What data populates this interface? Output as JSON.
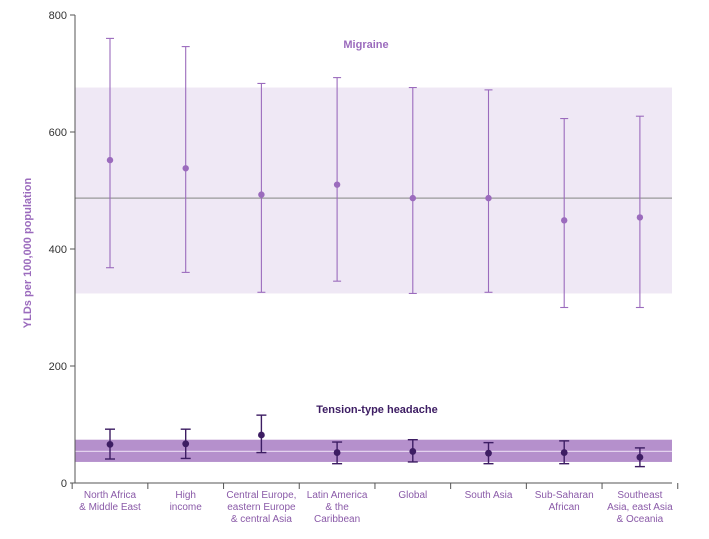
{
  "chart_data": {
    "type": "scatter",
    "ylabel": "YLDs per 100,000 population",
    "ylim": [
      0,
      800
    ],
    "yticks": [
      0,
      200,
      400,
      600,
      800
    ],
    "categories": [
      [
        "North Africa",
        "& Middle East"
      ],
      [
        "High",
        "income"
      ],
      [
        "Central Europe,",
        "eastern Europe",
        "& central Asia"
      ],
      [
        "Latin America",
        "& the",
        "Caribbean"
      ],
      [
        "Global"
      ],
      [
        "South Asia"
      ],
      [
        "Sub-Saharan",
        "African"
      ],
      [
        "Southeast",
        "Asia, east Asia",
        "& Oceania"
      ]
    ],
    "series": [
      {
        "name": "Migraine",
        "color": "#9b6bbd",
        "band_color": "#efe8f5",
        "line_color": "#999999",
        "values": [
          552,
          538,
          493,
          510,
          487,
          487,
          449,
          454
        ],
        "lower": [
          368,
          360,
          326,
          345,
          324,
          326,
          300,
          300
        ],
        "upper": [
          760,
          746,
          683,
          693,
          676,
          672,
          623,
          627
        ],
        "band": [
          324,
          676
        ],
        "reference": 487
      },
      {
        "name": "Tension-type headache",
        "color": "#3d1d63",
        "band_color": "#b590cc",
        "line_color": "#e3d2ee",
        "values": [
          66,
          67,
          82,
          52,
          54,
          51,
          52,
          44
        ],
        "lower": [
          41,
          42,
          52,
          33,
          36,
          33,
          33,
          28
        ],
        "upper": [
          92,
          92,
          116,
          70,
          74,
          69,
          72,
          60
        ],
        "band": [
          36,
          74
        ],
        "reference": 54
      }
    ]
  }
}
